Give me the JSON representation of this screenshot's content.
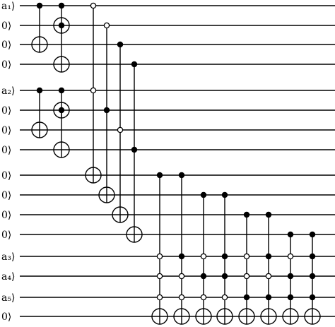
{
  "circuit": {
    "wires": [
      {
        "label": "a₁⟩"
      },
      {
        "label": "0⟩"
      },
      {
        "label": "0⟩"
      },
      {
        "label": "0⟩"
      },
      {
        "label": "a₂⟩"
      },
      {
        "label": "0⟩"
      },
      {
        "label": "0⟩"
      },
      {
        "label": "0⟩"
      },
      {
        "label": "0⟩"
      },
      {
        "label": "0⟩"
      },
      {
        "label": "0⟩"
      },
      {
        "label": "0⟩"
      },
      {
        "label": "a₃⟩"
      },
      {
        "label": "a₄⟩"
      },
      {
        "label": "a₅⟩"
      },
      {
        "label": "0⟩"
      }
    ],
    "gates": [
      {
        "controls": [
          0
        ],
        "open_controls": [],
        "target": 2
      },
      {
        "controls": [
          0
        ],
        "open_controls": [],
        "target": 1
      },
      {
        "controls": [
          1
        ],
        "open_controls": [],
        "target": 3
      },
      {
        "controls": [
          4
        ],
        "open_controls": [],
        "target": 6
      },
      {
        "controls": [
          4
        ],
        "open_controls": [],
        "target": 5
      },
      {
        "controls": [
          5
        ],
        "open_controls": [],
        "target": 7
      },
      {
        "controls": [],
        "open_controls": [
          0,
          4
        ],
        "target": 8
      },
      {
        "controls": [
          5
        ],
        "open_controls": [
          1
        ],
        "target": 9
      },
      {
        "controls": [
          2
        ],
        "open_controls": [
          6
        ],
        "target": 10
      },
      {
        "controls": [
          3,
          7
        ],
        "open_controls": [],
        "target": 11
      },
      {
        "controls": [
          8
        ],
        "open_controls": [
          12,
          13,
          14
        ],
        "target": 15
      },
      {
        "controls": [
          8,
          12
        ],
        "open_controls": [
          13,
          14
        ],
        "target": 15
      },
      {
        "controls": [
          9,
          13
        ],
        "open_controls": [
          12,
          14
        ],
        "target": 15
      },
      {
        "controls": [
          9,
          12,
          13
        ],
        "open_controls": [
          14
        ],
        "target": 15
      },
      {
        "controls": [
          10,
          14
        ],
        "open_controls": [
          12,
          13
        ],
        "target": 15
      },
      {
        "controls": [
          10,
          12,
          14
        ],
        "open_controls": [
          13
        ],
        "target": 15
      },
      {
        "controls": [
          11,
          13,
          14
        ],
        "open_controls": [
          12
        ],
        "target": 15
      },
      {
        "controls": [
          11,
          12,
          13,
          14
        ],
        "open_controls": [],
        "target": 15
      }
    ]
  }
}
